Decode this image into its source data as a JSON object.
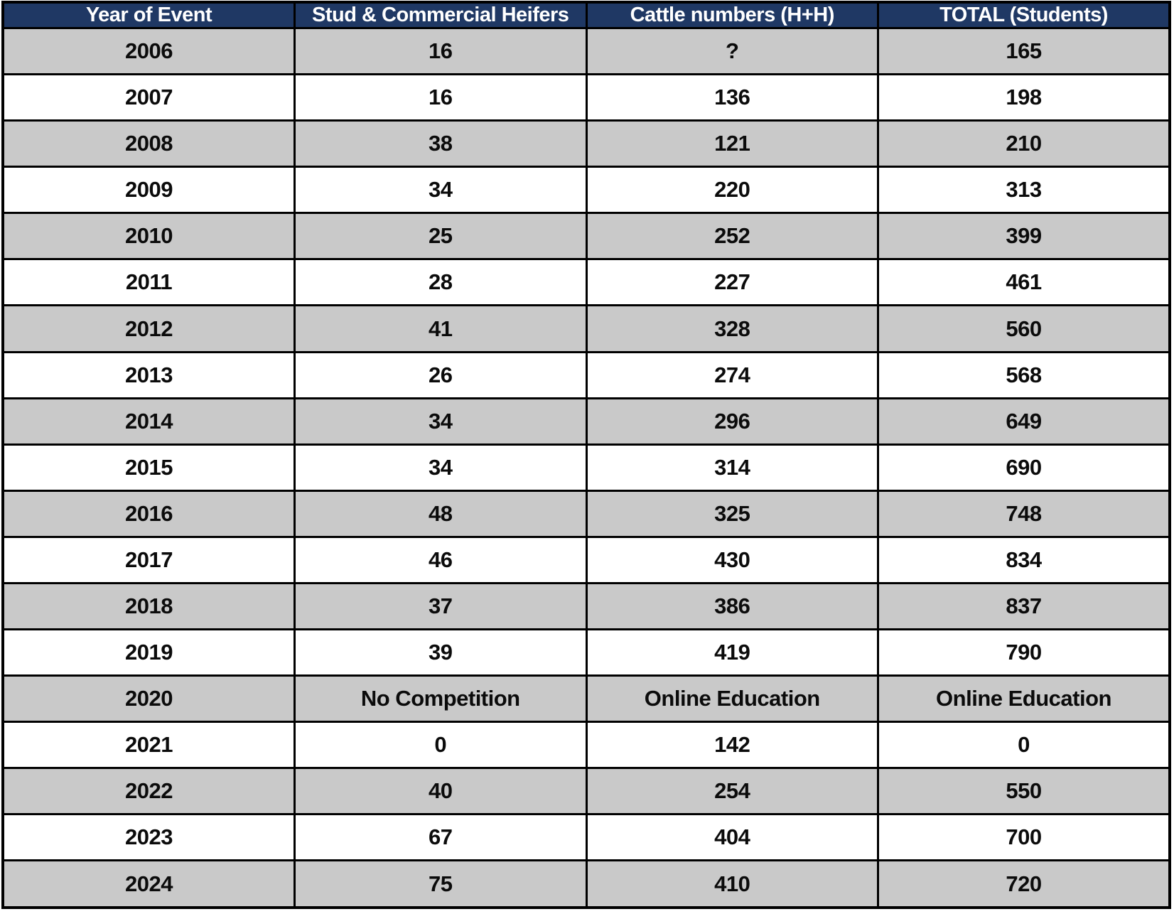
{
  "colors": {
    "header_bg": "#1F3864",
    "header_text": "#FFFFFF",
    "row_alt_bg": "#C9C9C9",
    "row_bg": "#FFFFFF",
    "border": "#000000",
    "cell_text": "#0B0B0B"
  },
  "chart_data": {
    "type": "table",
    "title": "",
    "columns": [
      "Year of Event",
      "Stud & Commercial Heifers",
      "Cattle numbers (H+H)",
      "TOTAL (Students)"
    ],
    "rows": [
      [
        "2006",
        "16",
        "?",
        "165"
      ],
      [
        "2007",
        "16",
        "136",
        "198"
      ],
      [
        "2008",
        "38",
        "121",
        "210"
      ],
      [
        "2009",
        "34",
        "220",
        "313"
      ],
      [
        "2010",
        "25",
        "252",
        "399"
      ],
      [
        "2011",
        "28",
        "227",
        "461"
      ],
      [
        "2012",
        "41",
        "328",
        "560"
      ],
      [
        "2013",
        "26",
        "274",
        "568"
      ],
      [
        "2014",
        "34",
        "296",
        "649"
      ],
      [
        "2015",
        "34",
        "314",
        "690"
      ],
      [
        "2016",
        "48",
        "325",
        "748"
      ],
      [
        "2017",
        "46",
        "430",
        "834"
      ],
      [
        "2018",
        "37",
        "386",
        "837"
      ],
      [
        "2019",
        "39",
        "419",
        "790"
      ],
      [
        "2020",
        "No Competition",
        "Online Education",
        "Online Education"
      ],
      [
        "2021",
        "0",
        "142",
        "0"
      ],
      [
        "2022",
        "40",
        "254",
        "550"
      ],
      [
        "2023",
        "67",
        "404",
        "700"
      ],
      [
        "2024",
        "75",
        "410",
        "720"
      ]
    ],
    "layout": {
      "striping": "first data row shaded, alternating",
      "header_position": "top",
      "column_alignment": "center"
    }
  }
}
